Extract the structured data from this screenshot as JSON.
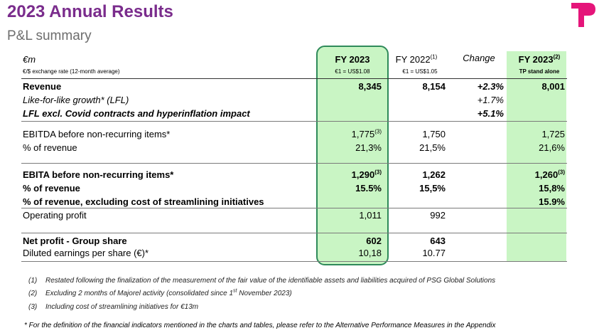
{
  "header": {
    "title": "2023 Annual Results",
    "subtitle": "P&L summary"
  },
  "table": {
    "unit": "€m",
    "unit_note": "€/$ exchange rate (12-month average)",
    "columns": [
      {
        "label": "FY 2023",
        "sub": "€1 = US$1.08"
      },
      {
        "label": "FY 2022",
        "sup": "(1)",
        "sub": "€1 = US$1.05"
      },
      {
        "label": "Change"
      },
      {
        "label": "FY 2023",
        "sup": "(2)",
        "sub": "TP stand alone"
      }
    ],
    "rows": [
      {
        "label": "Revenue",
        "cells": [
          "8,345",
          "8,154",
          "+2.3%",
          "8,001"
        ]
      },
      {
        "label": "Like-for-like growth* (LFL)",
        "cells": [
          null,
          null,
          "+1.7%",
          null
        ]
      },
      {
        "label": "LFL excl. Covid contracts and hyperinflation impact",
        "cells": [
          null,
          null,
          "+5.1%",
          null
        ]
      },
      {
        "label": "EBITDA before non-recurring items*",
        "cells": [
          {
            "text": "1,775",
            "sup": "(3)"
          },
          "1,750",
          null,
          "1,725"
        ]
      },
      {
        "label": "% of revenue",
        "cells": [
          "21,3%",
          "21,5%",
          null,
          "21,6%"
        ]
      },
      {
        "label": "EBITA before non-recurring items*",
        "cells": [
          {
            "text": "1,290",
            "sup": "(3)"
          },
          "1,262",
          null,
          {
            "text": "1,260",
            "sup": "(3)"
          }
        ]
      },
      {
        "label": "% of revenue",
        "cells": [
          "15.5%",
          "15,5%",
          null,
          "15,8%"
        ]
      },
      {
        "label": "% of revenue, excluding cost of streamlining initiatives",
        "cells": [
          null,
          null,
          null,
          "15.9%"
        ]
      },
      {
        "label": "Operating profit",
        "cells": [
          "1,011",
          "992",
          null,
          null
        ]
      },
      {
        "label": "Net profit - Group share",
        "cells": [
          "602",
          "643",
          null,
          null
        ]
      },
      {
        "label": "Diluted earnings per share (€)*",
        "cells": [
          "10,18",
          "10.77",
          null,
          null
        ]
      }
    ]
  },
  "footnotes": [
    {
      "marker": "(1)",
      "text": "Restated following the finalization of the measurement of the fair value of the identifiable assets and liabilities acquired of PSG Global Solutions"
    },
    {
      "marker": "(2)",
      "before": "Excluding 2 months of Majorel activity (consolidated since 1",
      "sup": "st",
      "after": " November 2023)"
    },
    {
      "marker": "(3)",
      "text": "Including cost of streamlining initiatives for €13m"
    }
  ],
  "note": "* For the definition of the financial indicators mentioned in the charts and tables, please refer to the Alternative Performance Measures in the Appendix"
}
